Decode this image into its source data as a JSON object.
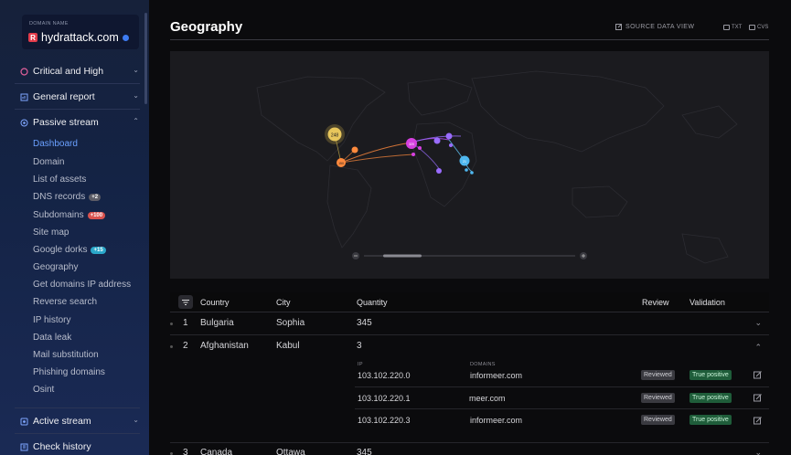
{
  "domain": {
    "caption": "DOMAIN NAME",
    "logo": "R",
    "name": "hydrattack.com"
  },
  "nav": {
    "sections": [
      {
        "label": "Critical and High",
        "icon": "alert-icon"
      },
      {
        "label": "General report",
        "icon": "report-icon"
      },
      {
        "label": "Passive stream",
        "icon": "stream-icon"
      },
      {
        "label": "Active stream",
        "icon": "active-icon"
      },
      {
        "label": "Check history",
        "icon": "history-icon"
      }
    ],
    "passive_items": [
      {
        "label": "Dashboard"
      },
      {
        "label": "Domain"
      },
      {
        "label": "List of assets"
      },
      {
        "label": "DNS records",
        "badge": "+2"
      },
      {
        "label": "Subdomains",
        "badge": "+100"
      },
      {
        "label": "Site map"
      },
      {
        "label": "Google dorks",
        "badge": "+15"
      },
      {
        "label": "Geography"
      },
      {
        "label": "Get domains IP address"
      },
      {
        "label": "Reverse search"
      },
      {
        "label": "IP history"
      },
      {
        "label": "Data leak"
      },
      {
        "label": "Mail substitution"
      },
      {
        "label": "Phishing domains"
      },
      {
        "label": "Osint"
      }
    ]
  },
  "page": {
    "title": "Geography",
    "source_view": "SOURCE DATA VIEW",
    "download_txt": "TXT",
    "download_cvs": "CVS"
  },
  "map": {
    "markers": [
      "248",
      "150",
      "320",
      "21"
    ]
  },
  "table": {
    "headers": {
      "country": "Country",
      "city": "City",
      "quantity": "Quantity",
      "review": "Review",
      "validation": "Validation"
    },
    "rows": [
      {
        "num": "1",
        "country": "Bulgaria",
        "city": "Sophia",
        "quantity": "345"
      },
      {
        "num": "2",
        "country": "Afghanistan",
        "city": "Kabul",
        "quantity": "3"
      },
      {
        "num": "3",
        "country": "Canada",
        "city": "Ottawa",
        "quantity": "345"
      }
    ],
    "detail": {
      "ip_caption": "IP",
      "domains_caption": "DOMAINS",
      "items": [
        {
          "ip": "103.102.220.0",
          "domain": "informeer.com",
          "review": "Reviewed",
          "validation": "True positive"
        },
        {
          "ip": "103.102.220.1",
          "domain": "meer.com",
          "review": "Reviewed",
          "validation": "True positive"
        },
        {
          "ip": "103.102.220.3",
          "domain": "informeer.com",
          "review": "Reviewed",
          "validation": "True positive"
        }
      ]
    }
  },
  "colors": {
    "accent": "#6aa0ff",
    "true_positive": "#1f5d3a",
    "badge_gray": "#5c5c66",
    "badge_red": "#d9534f",
    "badge_cyan": "#2aa7c9"
  }
}
